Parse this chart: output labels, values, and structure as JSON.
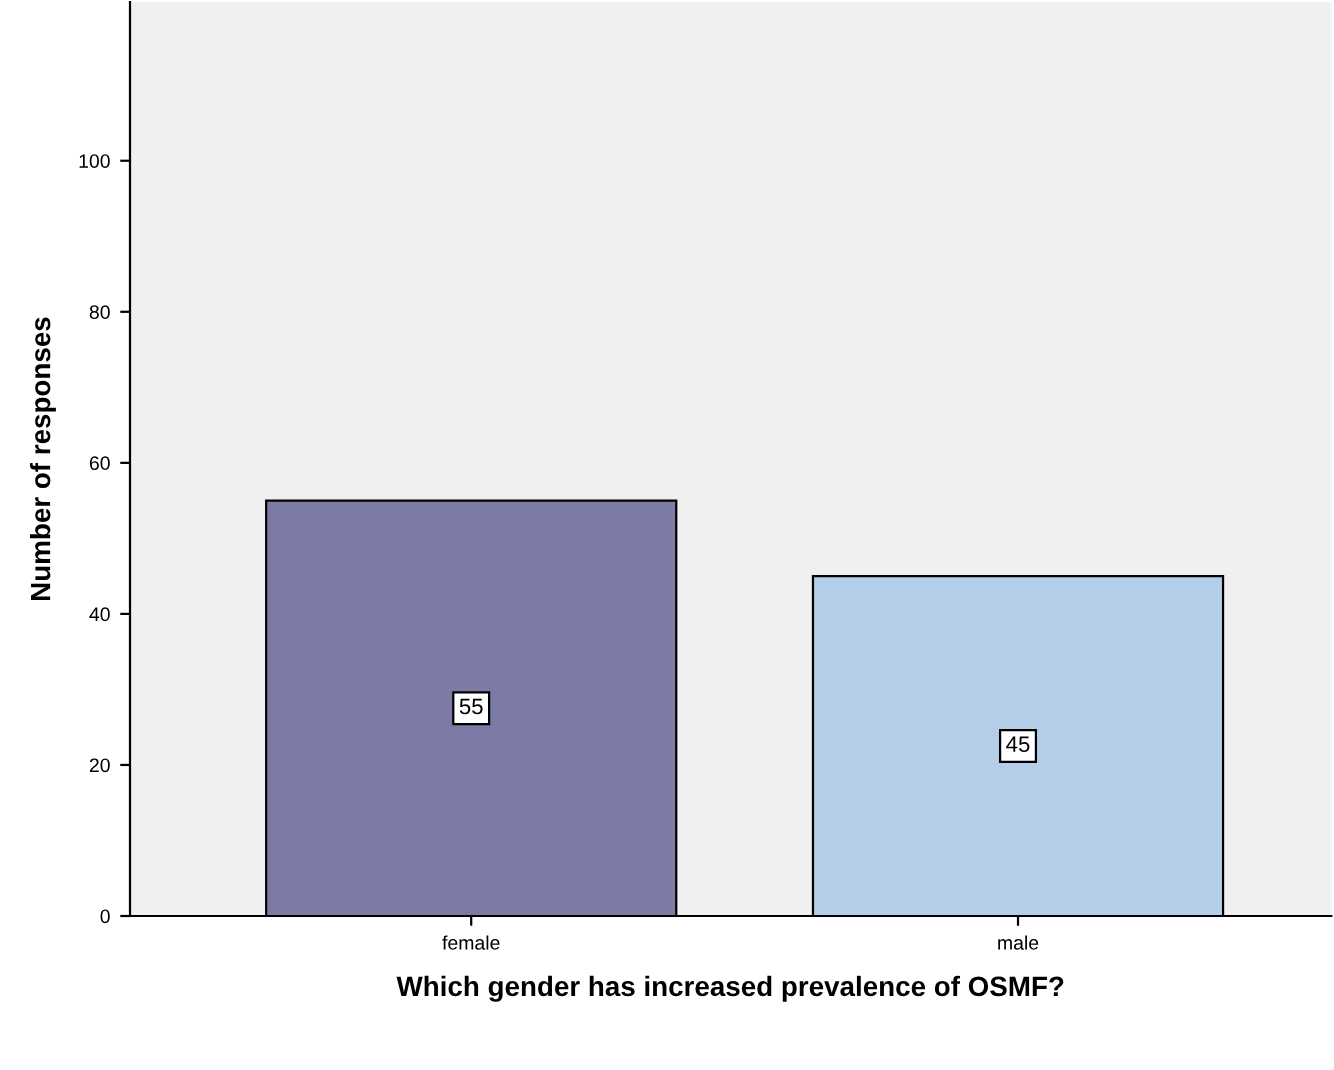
{
  "chart_data": {
    "type": "bar",
    "xlabel": "Which gender has increased prevalence of OSMF?",
    "ylabel": "Number of responses",
    "categories": [
      "female",
      "male"
    ],
    "values": [
      55,
      45
    ],
    "colors": [
      "#7b7ba6",
      "#b4cde9"
    ],
    "ylim": [
      0,
      121
    ],
    "yticks": [
      0,
      20,
      40,
      60,
      80,
      100
    ],
    "data_labels": true,
    "grid": false,
    "legend": false
  }
}
